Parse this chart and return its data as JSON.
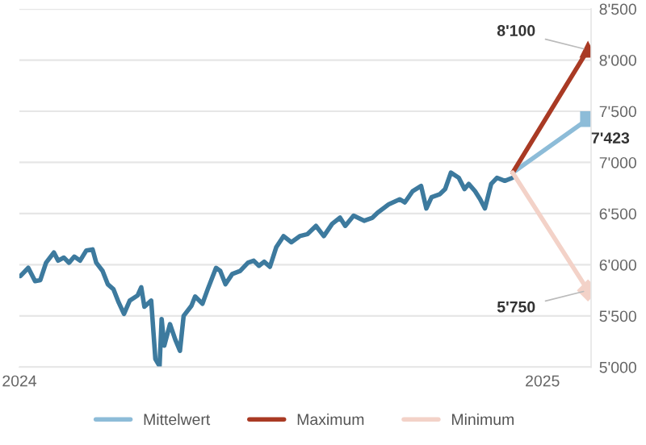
{
  "chart_data": {
    "type": "line",
    "xlim": [
      2024,
      2025.093
    ],
    "xticks": [
      2024,
      2025
    ],
    "ylim": [
      5000,
      8500
    ],
    "yticks": [
      {
        "value": 5000,
        "label": "5'000"
      },
      {
        "value": 5500,
        "label": "5'500"
      },
      {
        "value": 6000,
        "label": "6'000"
      },
      {
        "value": 6500,
        "label": "6'500"
      },
      {
        "value": 7000,
        "label": "7'000"
      },
      {
        "value": 7500,
        "label": "7'500"
      },
      {
        "value": 8000,
        "label": "8'000"
      },
      {
        "value": 8500,
        "label": "8'500"
      }
    ],
    "grid": "y",
    "legend": "bottom",
    "series": [
      {
        "color": "#3d7a9e",
        "x": [
          2024.002,
          2024.017,
          2024.03,
          2024.04,
          2024.051,
          2024.066,
          2024.074,
          2024.085,
          2024.095,
          2024.105,
          2024.116,
          2024.128,
          2024.14,
          2024.147,
          2024.159,
          2024.169,
          2024.18,
          2024.19,
          2024.2,
          2024.211,
          2024.226,
          2024.233,
          2024.239,
          2024.252,
          2024.26,
          2024.268,
          2024.272,
          2024.277,
          2024.288,
          2024.298,
          2024.307,
          2024.314,
          2024.329,
          2024.336,
          2024.35,
          2024.36,
          2024.376,
          2024.384,
          2024.394,
          2024.407,
          2024.422,
          2024.437,
          2024.448,
          2024.458,
          2024.468,
          2024.479,
          2024.491,
          2024.505,
          2024.52,
          2024.536,
          2024.551,
          2024.567,
          2024.582,
          2024.598,
          2024.613,
          2024.623,
          2024.639,
          2024.659,
          2024.675,
          2024.685,
          2024.706,
          2024.727,
          2024.737,
          2024.752,
          2024.768,
          2024.778,
          2024.788,
          2024.804,
          2024.814,
          2024.825,
          2024.84,
          2024.851,
          2024.859,
          2024.871,
          2024.881,
          2024.89,
          2024.902,
          2024.913,
          2024.928,
          2024.943
        ],
        "values": [
          5890,
          5970,
          5840,
          5850,
          6020,
          6120,
          6040,
          6070,
          6020,
          6080,
          6040,
          6140,
          6150,
          6020,
          5940,
          5810,
          5760,
          5630,
          5520,
          5650,
          5700,
          5780,
          5590,
          5650,
          5080,
          5010,
          5470,
          5210,
          5420,
          5270,
          5160,
          5500,
          5600,
          5690,
          5620,
          5760,
          5970,
          5940,
          5810,
          5910,
          5940,
          6020,
          6040,
          5990,
          6030,
          5980,
          6170,
          6280,
          6220,
          6280,
          6300,
          6380,
          6280,
          6400,
          6460,
          6380,
          6480,
          6430,
          6460,
          6510,
          6590,
          6640,
          6610,
          6720,
          6770,
          6550,
          6660,
          6690,
          6740,
          6900,
          6850,
          6740,
          6790,
          6720,
          6640,
          6550,
          6790,
          6850,
          6820,
          6850
        ]
      },
      {
        "name": "Mittelwert",
        "color": "#8dbcd8",
        "x": [
          2024.943,
          2025.087
        ],
        "values": [
          6900,
          7423
        ],
        "marker": "square",
        "value_labels": [
          null,
          "7'423"
        ]
      },
      {
        "name": "Maximum",
        "color": "#a93a24",
        "x": [
          2024.943,
          2025.087
        ],
        "values": [
          6900,
          8100
        ],
        "marker": "triangle",
        "value_labels": [
          null,
          "8'100"
        ]
      },
      {
        "name": "Minimum",
        "color": "#f3d2c8",
        "x": [
          2024.943,
          2025.087
        ],
        "values": [
          6900,
          5750
        ],
        "marker": "diamond",
        "value_labels": [
          null,
          "5'750"
        ]
      }
    ]
  }
}
